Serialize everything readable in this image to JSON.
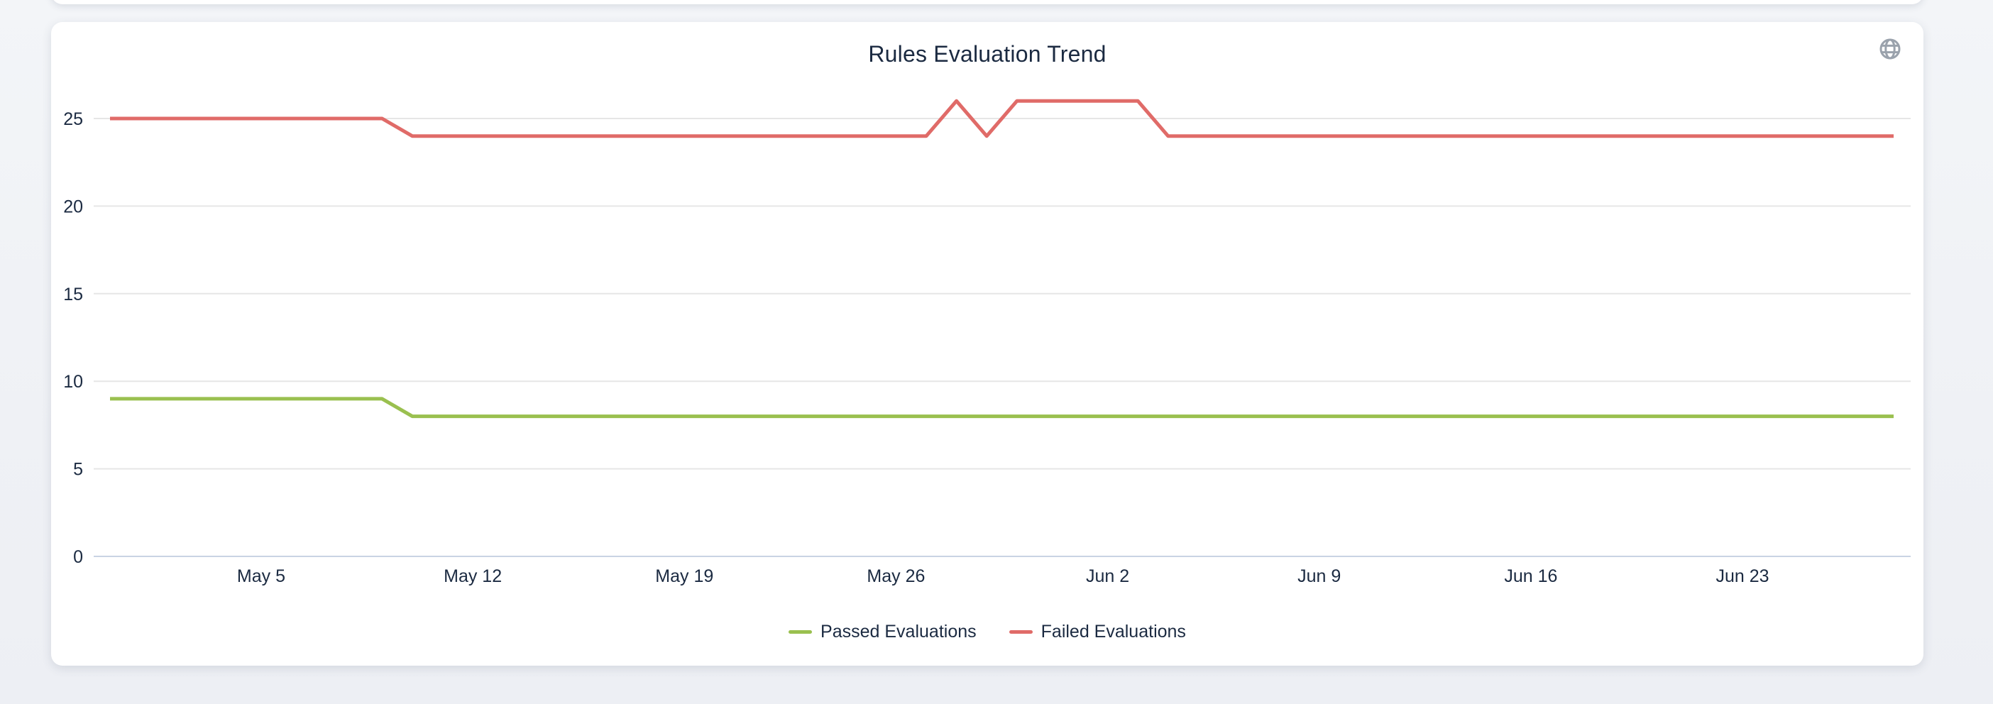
{
  "header": {
    "title": "Rules Evaluation Trend"
  },
  "theme": {
    "page_background": "#f0f2f6",
    "card_background": "#ffffff",
    "text_color": "#1b2a41",
    "gridline_color": "#e6e6e6",
    "baseline_color": "#c9d3e3",
    "globe_icon_color": "#9aa2ac",
    "passed_color": "#9ac04f",
    "failed_color": "#e06b68"
  },
  "chart_data": {
    "type": "line",
    "title": "Rules Evaluation Trend",
    "xlabel": "",
    "ylabel": "",
    "grid": true,
    "legend_position": "bottom",
    "ylim": [
      0,
      27
    ],
    "y_ticks": [
      0,
      5,
      10,
      15,
      20,
      25
    ],
    "x_tick_labels": [
      "May 5",
      "May 12",
      "May 19",
      "May 26",
      "Jun 2",
      "Jun 9",
      "Jun 16",
      "Jun 23"
    ],
    "x": [
      "Apr 30",
      "May 1",
      "May 2",
      "May 3",
      "May 4",
      "May 5",
      "May 6",
      "May 7",
      "May 8",
      "May 9",
      "May 10",
      "May 11",
      "May 12",
      "May 13",
      "May 14",
      "May 15",
      "May 16",
      "May 17",
      "May 18",
      "May 19",
      "May 20",
      "May 21",
      "May 22",
      "May 23",
      "May 24",
      "May 25",
      "May 26",
      "May 27",
      "May 28",
      "May 29",
      "May 30",
      "May 31",
      "Jun 1",
      "Jun 2",
      "Jun 3",
      "Jun 4",
      "Jun 5",
      "Jun 6",
      "Jun 7",
      "Jun 8",
      "Jun 9",
      "Jun 10",
      "Jun 11",
      "Jun 12",
      "Jun 13",
      "Jun 14",
      "Jun 15",
      "Jun 16",
      "Jun 17",
      "Jun 18",
      "Jun 19",
      "Jun 20",
      "Jun 21",
      "Jun 22",
      "Jun 23",
      "Jun 24",
      "Jun 25",
      "Jun 26",
      "Jun 27",
      "Jun 28"
    ],
    "series": [
      {
        "name": "Passed Evaluations",
        "color": "#9ac04f",
        "values": [
          9,
          9,
          9,
          9,
          9,
          9,
          9,
          9,
          9,
          9,
          8,
          8,
          8,
          8,
          8,
          8,
          8,
          8,
          8,
          8,
          8,
          8,
          8,
          8,
          8,
          8,
          8,
          8,
          8,
          8,
          8,
          8,
          8,
          8,
          8,
          8,
          8,
          8,
          8,
          8,
          8,
          8,
          8,
          8,
          8,
          8,
          8,
          8,
          8,
          8,
          8,
          8,
          8,
          8,
          8,
          8,
          8,
          8,
          8,
          8
        ]
      },
      {
        "name": "Failed Evaluations",
        "color": "#e06b68",
        "values": [
          25,
          25,
          25,
          25,
          25,
          25,
          25,
          25,
          25,
          25,
          24,
          24,
          24,
          24,
          24,
          24,
          24,
          24,
          24,
          24,
          24,
          24,
          24,
          24,
          24,
          24,
          24,
          24,
          26,
          24,
          26,
          26,
          26,
          26,
          26,
          24,
          24,
          24,
          24,
          24,
          24,
          24,
          24,
          24,
          24,
          24,
          24,
          24,
          24,
          24,
          24,
          24,
          24,
          24,
          24,
          24,
          24,
          24,
          24,
          24
        ]
      }
    ]
  }
}
